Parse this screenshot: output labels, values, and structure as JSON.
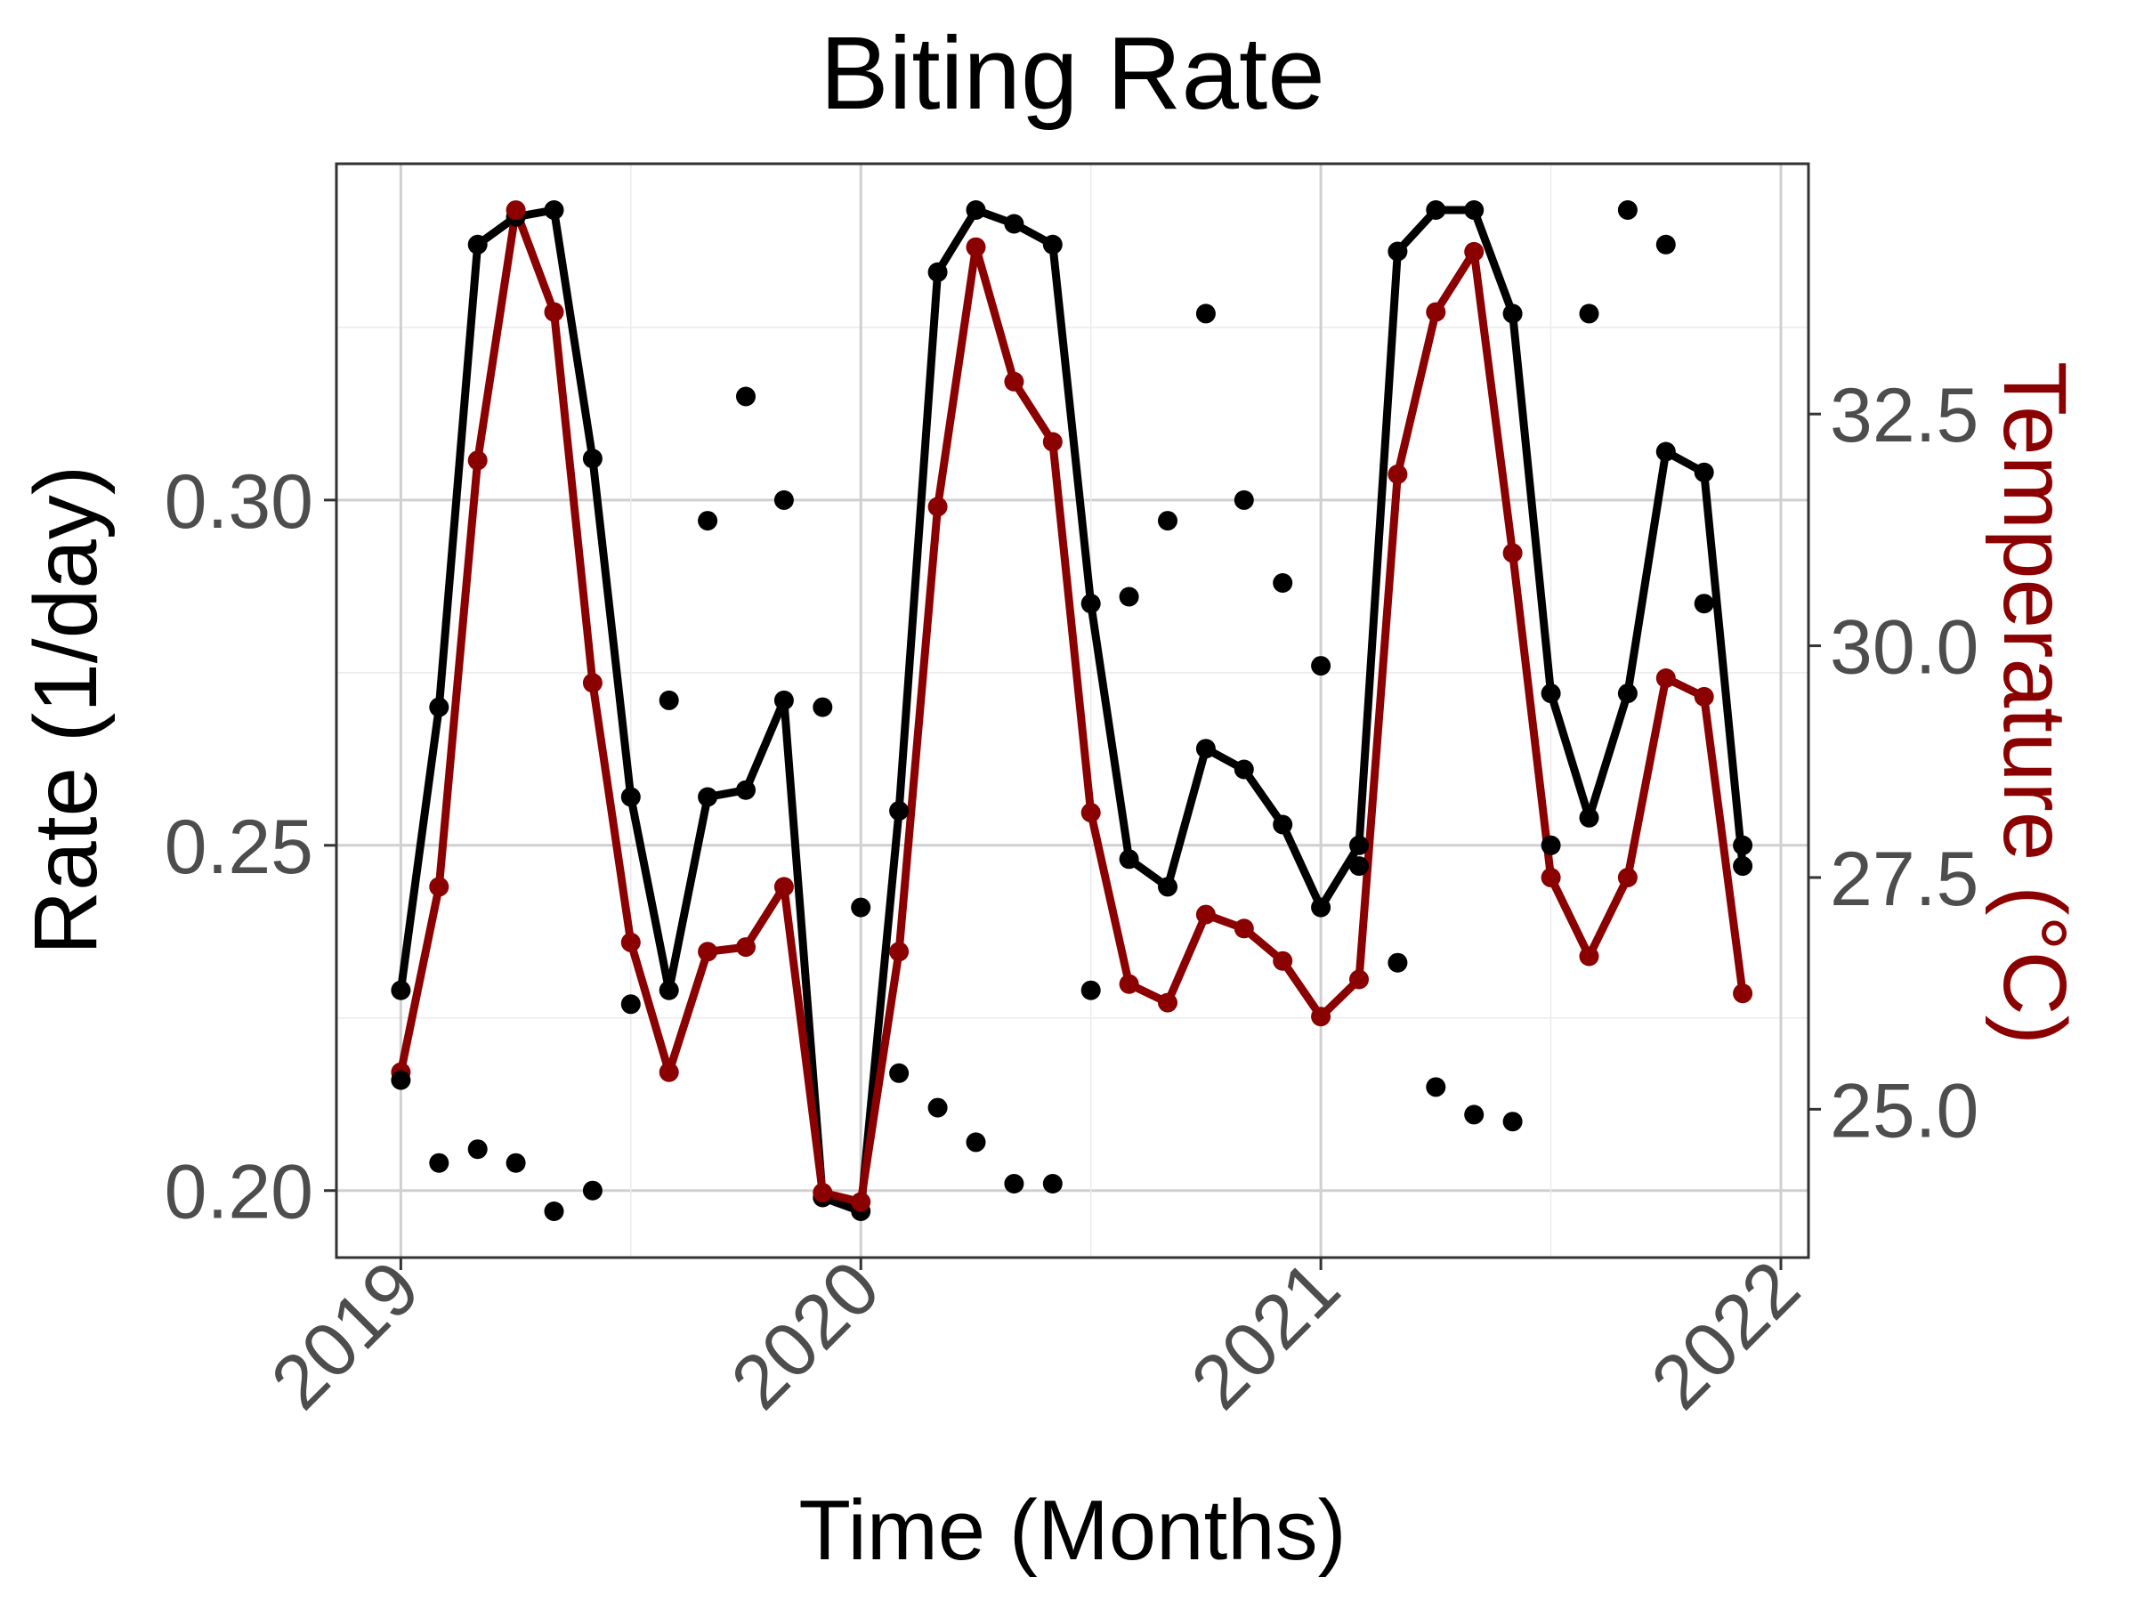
{
  "chart_data": {
    "type": "line",
    "title": "Biting Rate",
    "xlabel": "Time (Months)",
    "ylabel": "Rate (1/day)",
    "y2label": "Temperature (°C)",
    "x_ticks": [
      "2019",
      "2020",
      "2021",
      "2022"
    ],
    "y_ticks": [
      "0.20",
      "0.25",
      "0.30"
    ],
    "y2_ticks": [
      "25.0",
      "27.5",
      "30.0",
      "32.5"
    ],
    "xlim": [
      2018.86,
      2022.06
    ],
    "ylim": [
      0.1903,
      0.3487
    ],
    "y2lim": [
      23.4,
      35.2
    ],
    "grid": true,
    "colors": {
      "rate": "#000000",
      "temperature": "#8b0000",
      "observed": "#000000"
    },
    "series": [
      {
        "key": "rate",
        "x": [
          2019.0,
          2019.083,
          2019.167,
          2019.25,
          2019.333,
          2019.417,
          2019.5,
          2019.583,
          2019.667,
          2019.75,
          2019.833,
          2019.917,
          2020.0,
          2020.083,
          2020.167,
          2020.25,
          2020.333,
          2020.417,
          2020.5,
          2020.583,
          2020.667,
          2020.75,
          2020.833,
          2020.917,
          2021.0,
          2021.083,
          2021.167,
          2021.25,
          2021.333,
          2021.417,
          2021.5,
          2021.583,
          2021.667,
          2021.75,
          2021.833,
          2021.917
        ],
        "values": [
          0.229,
          0.27,
          0.337,
          0.341,
          0.342,
          0.306,
          0.257,
          0.229,
          0.257,
          0.258,
          0.271,
          0.199,
          0.197,
          0.255,
          0.333,
          0.342,
          0.34,
          0.337,
          0.285,
          0.248,
          0.244,
          0.264,
          0.261,
          0.253,
          0.241,
          0.25,
          0.336,
          0.342,
          0.342,
          0.327,
          0.272,
          0.254,
          0.272,
          0.307,
          0.304,
          0.247
        ]
      },
      {
        "key": "temperature",
        "axis": "right",
        "x": [
          2019.0,
          2019.083,
          2019.167,
          2019.25,
          2019.333,
          2019.417,
          2019.5,
          2019.583,
          2019.667,
          2019.75,
          2019.833,
          2019.917,
          2020.0,
          2020.083,
          2020.167,
          2020.25,
          2020.333,
          2020.417,
          2020.5,
          2020.583,
          2020.667,
          2020.75,
          2020.833,
          2020.917,
          2021.0,
          2021.083,
          2021.167,
          2021.25,
          2021.333,
          2021.417,
          2021.5,
          2021.583,
          2021.667,
          2021.75,
          2021.833,
          2021.917
        ],
        "values": [
          25.4,
          27.4,
          32.0,
          34.7,
          33.6,
          29.6,
          26.8,
          25.4,
          26.7,
          26.75,
          27.4,
          24.1,
          24.0,
          26.7,
          31.5,
          34.3,
          32.85,
          32.2,
          28.2,
          26.35,
          26.15,
          27.1,
          26.95,
          26.6,
          26.0,
          26.4,
          31.85,
          33.6,
          34.25,
          31.0,
          27.5,
          26.65,
          27.5,
          29.65,
          29.45,
          26.25
        ]
      },
      {
        "key": "observed",
        "type": "scatter",
        "x": [
          2019.0,
          2019.083,
          2019.167,
          2019.25,
          2019.333,
          2019.417,
          2019.5,
          2019.583,
          2019.667,
          2019.75,
          2019.833,
          2019.917,
          2020.0,
          2020.083,
          2020.167,
          2020.25,
          2020.333,
          2020.417,
          2020.5,
          2020.583,
          2020.667,
          2020.75,
          2020.833,
          2020.917,
          2021.0,
          2021.083,
          2021.167,
          2021.25,
          2021.333,
          2021.417,
          2021.5,
          2021.583,
          2021.667,
          2021.75,
          2021.833,
          2021.917
        ],
        "values": [
          0.216,
          0.204,
          0.206,
          0.204,
          0.197,
          0.2,
          0.227,
          0.271,
          0.297,
          0.315,
          0.3,
          0.27,
          0.241,
          0.217,
          0.212,
          0.207,
          0.201,
          0.201,
          0.229,
          0.286,
          0.297,
          0.327,
          0.3,
          0.288,
          0.276,
          0.247,
          0.233,
          0.215,
          0.211,
          0.21,
          0.25,
          0.327,
          0.342,
          0.337,
          0.285,
          0.25
        ]
      }
    ]
  }
}
